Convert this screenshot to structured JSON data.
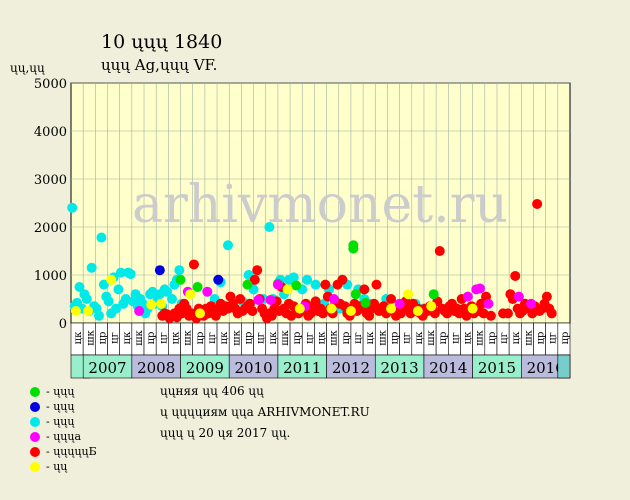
{
  "header": {
    "title": "10 ųųų 1840",
    "subtitle": "ųųų Ag,ųųų VF.",
    "ylabel": "ųų,ųų"
  },
  "watermark": "arhivmonet.ru",
  "legend": [
    {
      "color": "#00e000",
      "label": "- ųųų"
    },
    {
      "color": "#0000e0",
      "label": "- ųųų"
    },
    {
      "color": "#00e8e8",
      "label": "- ųųų"
    },
    {
      "color": "#ff00ff",
      "label": "- ųųųa"
    },
    {
      "color": "#ff0000",
      "label": "- ųųųųųБ"
    },
    {
      "color": "#ffff00",
      "label": "- ųų"
    }
  ],
  "info": [
    "ųųняя ųų 406 ųų",
    "ų ųųųųиям ųųa ARHIVMONET.RU",
    "ųųų ų 20 ųя 2017 ųų."
  ],
  "colors": {
    "bg": "#efefdb",
    "plot_bg": "#ffffcc",
    "grid": "#a0b0a0",
    "year_green": "#99eecc",
    "year_purple": "#bbbbdd",
    "end_cap": "#77cccc"
  },
  "chart_data": {
    "type": "scatter",
    "ylim": [
      0,
      5000
    ],
    "yticks": [
      0,
      1000,
      2000,
      3000,
      4000,
      5000
    ],
    "quarter_labels": [
      "цк",
      "шк",
      "цр",
      "цг",
      "цк",
      "шк",
      "цр",
      "цг",
      "цк",
      "шк",
      "цр",
      "цг",
      "цк",
      "шк",
      "цр",
      "цг",
      "цк",
      "шк",
      "цр",
      "цг",
      "цк",
      "шк",
      "цр",
      "цг",
      "цк",
      "шк",
      "цр",
      "цг",
      "цк",
      "шк",
      "цр",
      "цг",
      "цк",
      "шк",
      "цр",
      "цг",
      "цк",
      "шк",
      "цр",
      "цг",
      "цр"
    ],
    "years": [
      "2007",
      "2008",
      "2009",
      "2010",
      "2011",
      "2012",
      "2013",
      "2014",
      "2015",
      "2016"
    ],
    "series": [
      {
        "name": "- ųųų",
        "color": "#00e000",
        "points": [
          [
            9.0,
            900
          ],
          [
            10.4,
            750
          ],
          [
            14.5,
            800
          ],
          [
            17.0,
            820
          ],
          [
            17.8,
            700
          ],
          [
            18.5,
            780
          ],
          [
            23.2,
            1550
          ],
          [
            23.2,
            1620
          ],
          [
            23.4,
            600
          ],
          [
            24.2,
            420
          ],
          [
            29.8,
            600
          ]
        ]
      },
      {
        "name": "- ųųų",
        "color": "#0000e0",
        "points": [
          [
            7.3,
            1100
          ],
          [
            12.1,
            900
          ]
        ]
      },
      {
        "name": "- ųųų",
        "color": "#00e8e8",
        "points": [
          [
            0.1,
            2400
          ],
          [
            0.3,
            350
          ],
          [
            0.5,
            420
          ],
          [
            0.7,
            750
          ],
          [
            0.9,
            300
          ],
          [
            1.1,
            600
          ],
          [
            1.3,
            500
          ],
          [
            1.5,
            250
          ],
          [
            1.7,
            1150
          ],
          [
            1.9,
            350
          ],
          [
            2.1,
            300
          ],
          [
            2.3,
            150
          ],
          [
            2.5,
            1780
          ],
          [
            2.7,
            800
          ],
          [
            2.9,
            550
          ],
          [
            3.1,
            450
          ],
          [
            3.3,
            200
          ],
          [
            3.5,
            950
          ],
          [
            3.7,
            300
          ],
          [
            3.9,
            700
          ],
          [
            4.1,
            1050
          ],
          [
            4.3,
            400
          ],
          [
            4.5,
            500
          ],
          [
            4.7,
            1050
          ],
          [
            4.9,
            1020
          ],
          [
            5.1,
            450
          ],
          [
            5.3,
            600
          ],
          [
            5.5,
            350
          ],
          [
            5.7,
            500
          ],
          [
            5.9,
            400
          ],
          [
            6.1,
            200
          ],
          [
            6.3,
            300
          ],
          [
            6.5,
            600
          ],
          [
            6.7,
            650
          ],
          [
            6.9,
            400
          ],
          [
            7.1,
            550
          ],
          [
            7.3,
            600
          ],
          [
            7.5,
            350
          ],
          [
            7.7,
            700
          ],
          [
            7.9,
            650
          ],
          [
            8.3,
            500
          ],
          [
            8.5,
            800
          ],
          [
            8.7,
            900
          ],
          [
            8.9,
            1100
          ],
          [
            9.1,
            400
          ],
          [
            11.5,
            300
          ],
          [
            11.8,
            500
          ],
          [
            12.3,
            850
          ],
          [
            12.9,
            1620
          ],
          [
            14.1,
            450
          ],
          [
            14.6,
            1000
          ],
          [
            15.0,
            700
          ],
          [
            15.8,
            500
          ],
          [
            16.3,
            2000
          ],
          [
            16.6,
            500
          ],
          [
            17.2,
            900
          ],
          [
            17.5,
            600
          ],
          [
            17.9,
            900
          ],
          [
            18.3,
            950
          ],
          [
            19.0,
            700
          ],
          [
            19.4,
            900
          ],
          [
            20.1,
            800
          ],
          [
            20.8,
            400
          ],
          [
            21.2,
            700
          ],
          [
            22.1,
            300
          ],
          [
            22.7,
            800
          ],
          [
            23.6,
            700
          ],
          [
            24.1,
            500
          ],
          [
            24.5,
            400
          ],
          [
            25.3,
            300
          ],
          [
            25.9,
            500
          ],
          [
            27.5,
            300
          ],
          [
            28.3,
            400
          ],
          [
            28.9,
            300
          ]
        ]
      },
      {
        "name": "- ųųųa",
        "color": "#ff00ff",
        "points": [
          [
            5.6,
            250
          ],
          [
            9.6,
            650
          ],
          [
            11.2,
            650
          ],
          [
            15.4,
            480
          ],
          [
            16.4,
            480
          ],
          [
            17.0,
            800
          ],
          [
            19.2,
            350
          ],
          [
            21.6,
            500
          ],
          [
            27.0,
            400
          ],
          [
            32.6,
            550
          ],
          [
            33.3,
            700
          ],
          [
            33.6,
            720
          ],
          [
            34.3,
            400
          ],
          [
            36.8,
            550
          ],
          [
            37.8,
            400
          ]
        ]
      },
      {
        "name": "- ųųųųųБ",
        "color": "#ff0000",
        "points": [
          [
            7.5,
            150
          ],
          [
            7.7,
            200
          ],
          [
            7.9,
            180
          ],
          [
            8.1,
            100
          ],
          [
            8.3,
            160
          ],
          [
            8.5,
            200
          ],
          [
            8.7,
            120
          ],
          [
            8.9,
            300
          ],
          [
            9.1,
            200
          ],
          [
            9.3,
            400
          ],
          [
            9.5,
            300
          ],
          [
            9.7,
            150
          ],
          [
            9.9,
            200
          ],
          [
            10.1,
            1220
          ],
          [
            10.3,
            100
          ],
          [
            10.5,
            300
          ],
          [
            10.7,
            200
          ],
          [
            10.9,
            150
          ],
          [
            11.1,
            300
          ],
          [
            11.3,
            200
          ],
          [
            11.5,
            350
          ],
          [
            11.7,
            250
          ],
          [
            11.9,
            150
          ],
          [
            12.1,
            300
          ],
          [
            12.3,
            400
          ],
          [
            12.5,
            250
          ],
          [
            12.7,
            350
          ],
          [
            12.9,
            300
          ],
          [
            13.1,
            550
          ],
          [
            13.3,
            400
          ],
          [
            13.5,
            300
          ],
          [
            13.7,
            200
          ],
          [
            13.9,
            500
          ],
          [
            14.1,
            250
          ],
          [
            14.3,
            300
          ],
          [
            14.5,
            350
          ],
          [
            14.7,
            400
          ],
          [
            14.9,
            250
          ],
          [
            15.1,
            900
          ],
          [
            15.3,
            1100
          ],
          [
            15.5,
            500
          ],
          [
            15.7,
            300
          ],
          [
            15.9,
            200
          ],
          [
            16.1,
            100
          ],
          [
            16.3,
            200
          ],
          [
            16.5,
            150
          ],
          [
            16.7,
            300
          ],
          [
            16.9,
            450
          ],
          [
            17.1,
            250
          ],
          [
            17.3,
            750
          ],
          [
            17.5,
            300
          ],
          [
            17.7,
            200
          ],
          [
            17.9,
            400
          ],
          [
            18.1,
            150
          ],
          [
            18.3,
            350
          ],
          [
            18.5,
            300
          ],
          [
            18.7,
            200
          ],
          [
            18.9,
            250
          ],
          [
            19.1,
            300
          ],
          [
            19.3,
            400
          ],
          [
            19.5,
            150
          ],
          [
            19.7,
            200
          ],
          [
            19.9,
            350
          ],
          [
            20.1,
            450
          ],
          [
            20.3,
            250
          ],
          [
            20.5,
            300
          ],
          [
            20.7,
            200
          ],
          [
            20.9,
            800
          ],
          [
            21.1,
            550
          ],
          [
            21.3,
            300
          ],
          [
            21.5,
            200
          ],
          [
            21.7,
            450
          ],
          [
            21.9,
            800
          ],
          [
            22.1,
            400
          ],
          [
            22.3,
            900
          ],
          [
            22.5,
            350
          ],
          [
            22.7,
            200
          ],
          [
            22.9,
            150
          ],
          [
            23.1,
            300
          ],
          [
            23.3,
            400
          ],
          [
            23.5,
            250
          ],
          [
            23.7,
            350
          ],
          [
            23.9,
            300
          ],
          [
            24.1,
            700
          ],
          [
            24.3,
            200
          ],
          [
            24.5,
            150
          ],
          [
            24.7,
            300
          ],
          [
            24.9,
            400
          ],
          [
            25.1,
            800
          ],
          [
            25.3,
            250
          ],
          [
            25.5,
            300
          ],
          [
            25.7,
            350
          ],
          [
            25.9,
            200
          ],
          [
            26.1,
            300
          ],
          [
            26.3,
            500
          ],
          [
            26.5,
            250
          ],
          [
            26.7,
            150
          ],
          [
            26.9,
            300
          ],
          [
            27.1,
            200
          ],
          [
            27.3,
            350
          ],
          [
            27.5,
            450
          ],
          [
            27.7,
            300
          ],
          [
            27.9,
            200
          ],
          [
            28.1,
            400
          ],
          [
            28.3,
            250
          ],
          [
            28.5,
            300
          ],
          [
            28.7,
            200
          ],
          [
            28.9,
            150
          ],
          [
            29.1,
            300
          ],
          [
            29.3,
            250
          ],
          [
            29.5,
            350
          ],
          [
            29.7,
            300
          ],
          [
            29.9,
            200
          ],
          [
            30.1,
            450
          ],
          [
            30.3,
            1500
          ],
          [
            30.5,
            300
          ],
          [
            30.7,
            250
          ],
          [
            30.9,
            200
          ],
          [
            31.1,
            350
          ],
          [
            31.3,
            400
          ],
          [
            31.5,
            250
          ],
          [
            31.7,
            300
          ],
          [
            31.9,
            200
          ],
          [
            32.1,
            500
          ],
          [
            32.3,
            300
          ],
          [
            32.5,
            150
          ],
          [
            32.7,
            250
          ],
          [
            32.9,
            350
          ],
          [
            33.1,
            200
          ],
          [
            33.3,
            300
          ],
          [
            33.5,
            250
          ],
          [
            33.7,
            400
          ],
          [
            33.9,
            200
          ],
          [
            34.1,
            550
          ],
          [
            34.5,
            150
          ],
          [
            35.5,
            200
          ],
          [
            35.9,
            200
          ],
          [
            36.1,
            600
          ],
          [
            36.3,
            500
          ],
          [
            36.5,
            980
          ],
          [
            36.7,
            300
          ],
          [
            36.9,
            200
          ],
          [
            37.1,
            250
          ],
          [
            37.3,
            400
          ],
          [
            37.5,
            350
          ],
          [
            37.7,
            300
          ],
          [
            37.9,
            200
          ],
          [
            38.1,
            350
          ],
          [
            38.3,
            2480
          ],
          [
            38.5,
            250
          ],
          [
            38.7,
            300
          ],
          [
            38.9,
            400
          ],
          [
            39.1,
            550
          ],
          [
            39.3,
            300
          ],
          [
            39.5,
            200
          ]
        ]
      },
      {
        "name": "- ųų",
        "color": "#ffff00",
        "points": [
          [
            0.4,
            250
          ],
          [
            1.4,
            250
          ],
          [
            3.3,
            900
          ],
          [
            6.6,
            380
          ],
          [
            7.4,
            400
          ],
          [
            9.8,
            600
          ],
          [
            10.6,
            200
          ],
          [
            17.8,
            700
          ],
          [
            18.8,
            300
          ],
          [
            21.4,
            300
          ],
          [
            23.0,
            250
          ],
          [
            26.3,
            300
          ],
          [
            27.7,
            600
          ],
          [
            28.5,
            250
          ],
          [
            29.6,
            350
          ],
          [
            33.0,
            300
          ]
        ]
      }
    ]
  }
}
